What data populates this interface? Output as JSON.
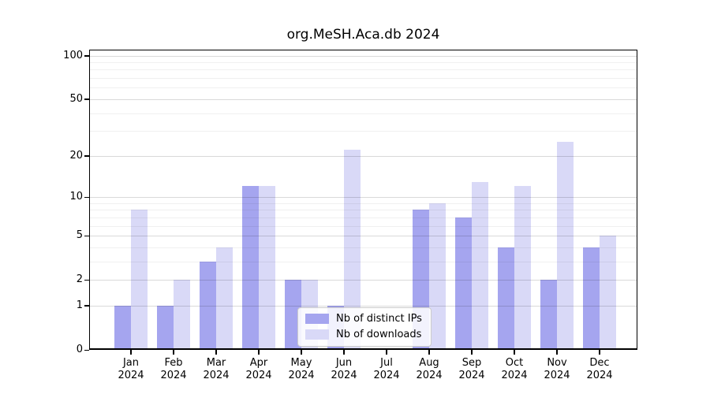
{
  "title": "org.MeSH.Aca.db 2024",
  "chart_data": {
    "type": "bar",
    "title": "org.MeSH.Aca.db 2024",
    "categories": [
      "Jan",
      "Feb",
      "Mar",
      "Apr",
      "May",
      "Jun",
      "Jul",
      "Aug",
      "Sep",
      "Oct",
      "Nov",
      "Dec"
    ],
    "year_label": "2024",
    "series": [
      {
        "name": "Nb of distinct IPs",
        "color": "#a5a5ef",
        "values": [
          1,
          1,
          3,
          12,
          2,
          1,
          0,
          8,
          7,
          4,
          2,
          4
        ]
      },
      {
        "name": "Nb of downloads",
        "color": "#d9d9f7",
        "values": [
          8,
          2,
          4,
          12,
          2,
          22,
          0,
          9,
          13,
          12,
          25,
          5
        ]
      }
    ],
    "yscale": "log1p",
    "ylim": [
      0,
      110
    ],
    "y_ticks": [
      0,
      1,
      2,
      5,
      10,
      20,
      50,
      100
    ],
    "y_minor_gridlines": [
      3,
      4,
      6,
      7,
      8,
      9,
      30,
      40,
      60,
      70,
      80,
      90
    ],
    "xlabel": "",
    "ylabel": "",
    "grid": "on",
    "legend_position": "lower center"
  },
  "colors": {
    "distinct_ips": "#a5a5ef",
    "downloads": "#d9d9f7",
    "grid_major": "#d9d9d9",
    "grid_minor": "#efefef",
    "axis": "#000000",
    "background": "#ffffff"
  }
}
